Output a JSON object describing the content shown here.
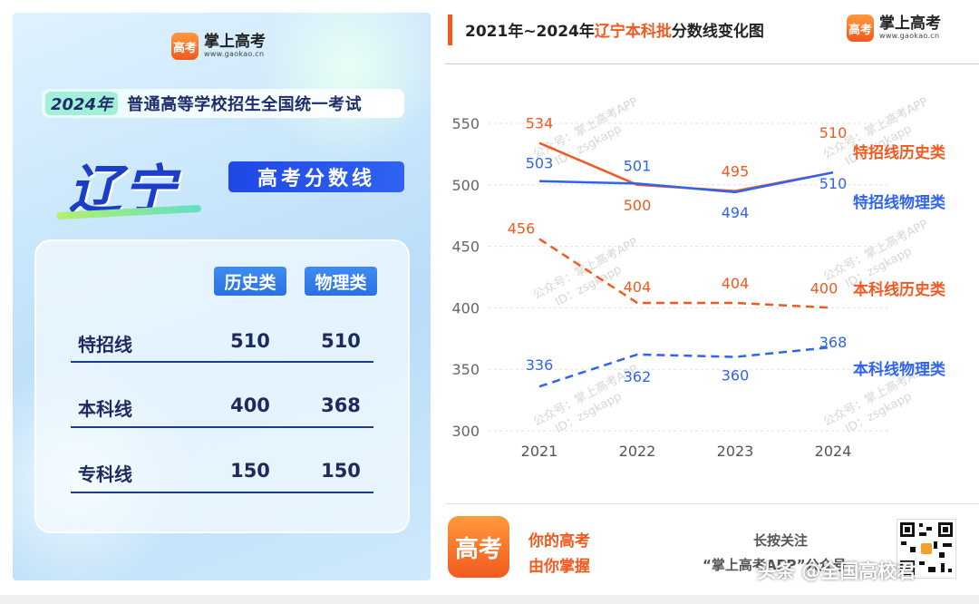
{
  "poster": {
    "brand_name": "掌上高考",
    "brand_url": "www.gaokao.cn",
    "brand_logo_text": "高考",
    "exam_year": "2024年",
    "exam_title": "普通高等学校招生全国统一考试",
    "province": "辽宁",
    "score_tag": "高考分数线",
    "columns": [
      "历史类",
      "物理类"
    ],
    "rows": [
      {
        "label": "特招线",
        "history": "510",
        "physics": "510"
      },
      {
        "label": "本科线",
        "history": "400",
        "physics": "368"
      },
      {
        "label": "专科线",
        "history": "150",
        "physics": "150"
      }
    ],
    "colors": {
      "primary": "#1b3ec9",
      "tag": "#2f63f2",
      "text": "#1c2a5c"
    }
  },
  "chart_header": {
    "title_prefix": "2021年~2024年",
    "title_highlight": "辽宁本科批",
    "title_suffix": "分数线变化图",
    "brand_name": "掌上高考",
    "brand_url": "www.gaokao.cn",
    "brand_logo_text": "高考"
  },
  "chart_data": {
    "type": "line",
    "title": "2021年~2024年辽宁本科批分数线变化图",
    "x": [
      "2021",
      "2022",
      "2023",
      "2024"
    ],
    "ylim": [
      300,
      550
    ],
    "yticks": [
      300,
      350,
      400,
      450,
      500,
      550
    ],
    "grid": true,
    "series": [
      {
        "name": "特招线历史类",
        "values": [
          534,
          500,
          495,
          510
        ],
        "color": "#f2591f",
        "dashed": false
      },
      {
        "name": "特招线物理类",
        "values": [
          503,
          501,
          494,
          510
        ],
        "color": "#2f63f2",
        "dashed": false
      },
      {
        "name": "本科线历史类",
        "values": [
          456,
          404,
          404,
          400
        ],
        "color": "#f2591f",
        "dashed": true
      },
      {
        "name": "本科线物理类",
        "values": [
          336,
          362,
          360,
          368
        ],
        "color": "#2f63f2",
        "dashed": true
      }
    ],
    "watermark_text": [
      "公众号：掌上高考APP",
      "ID：zsgkapp"
    ]
  },
  "footer": {
    "logo_text": "高考",
    "slogan_1": "你的高考",
    "slogan_2": "由你掌握",
    "follow_1": "长按关注",
    "follow_2": "“掌上高考APP”公众号",
    "watermark": "头条 @全国高校君"
  }
}
